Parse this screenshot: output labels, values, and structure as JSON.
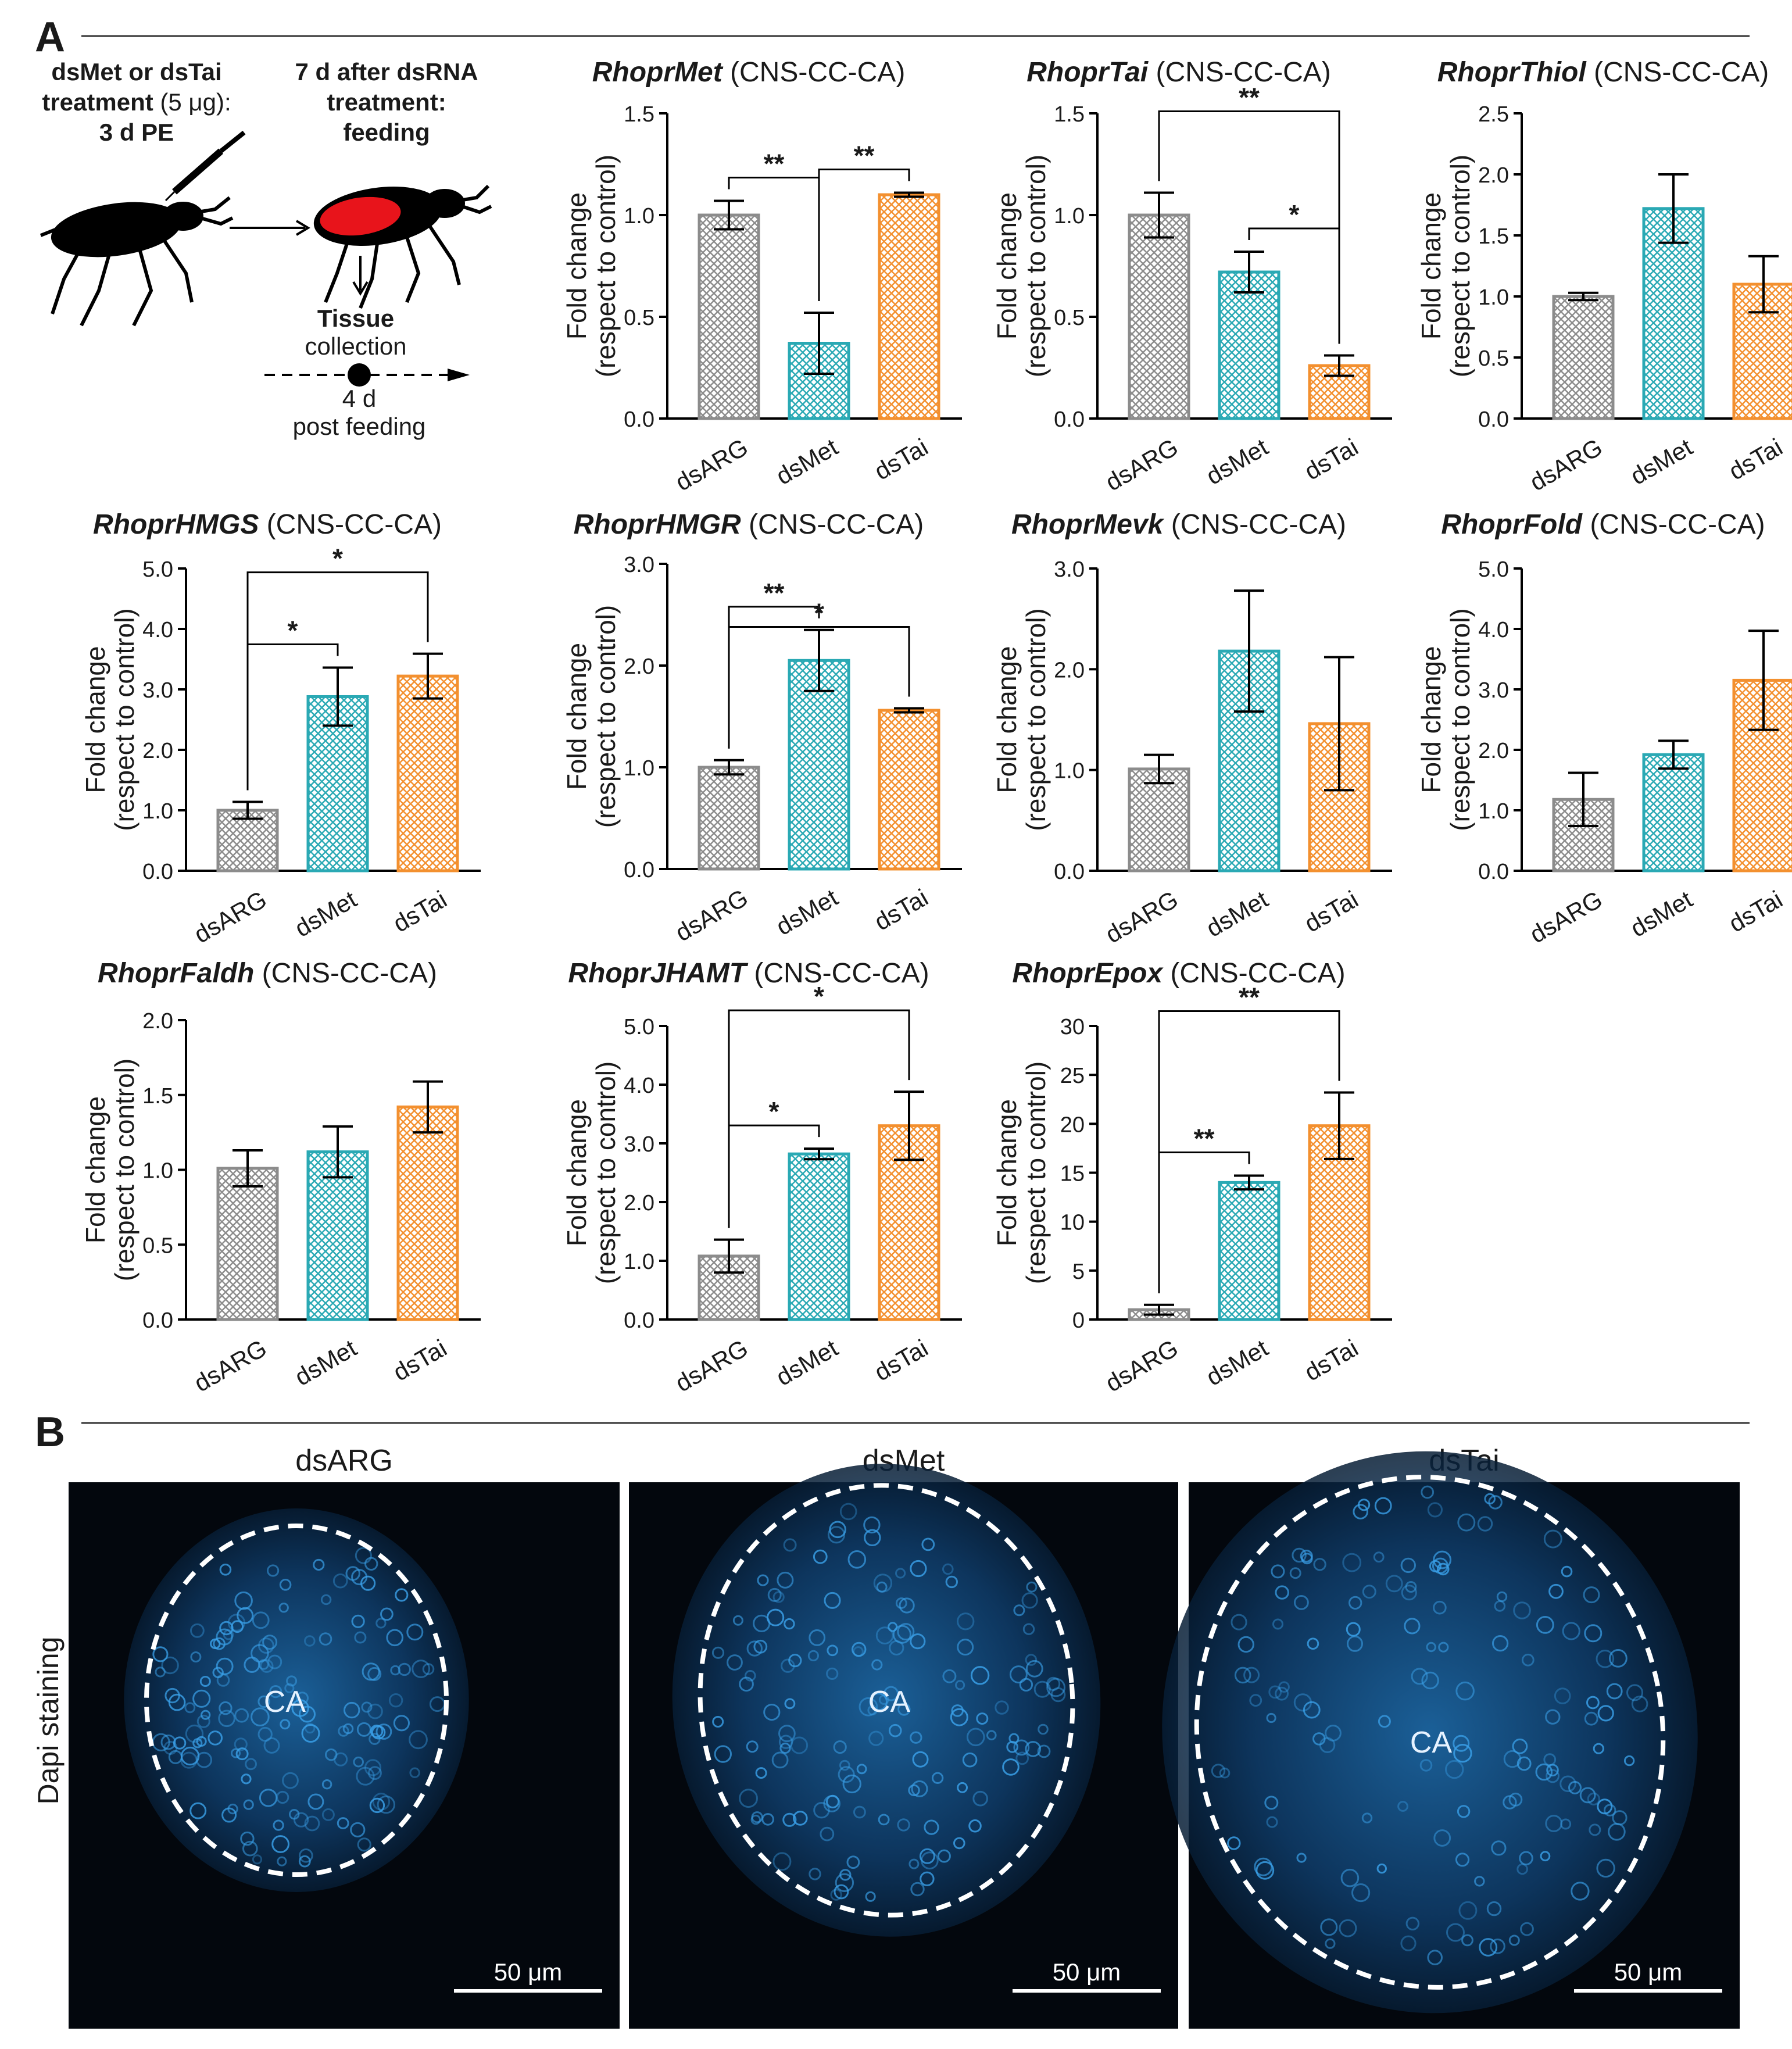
{
  "panel_a": {
    "letter": "A",
    "schematic": {
      "step1_line1": "dsMet or dsTai",
      "step1_line2a": "treatment",
      "step1_line2b": " (5 μg):",
      "step1_line3": "3 d PE",
      "step2_line1": "7 d after dsRNA",
      "step2_line2": "treatment:",
      "step2_line3": "feeding",
      "tissue": "Tissue",
      "collection": "collection",
      "days": "4 d",
      "post": "post feeding"
    },
    "ylabel_line1": "Fold change",
    "ylabel_line2": "(respect to control)",
    "colors": {
      "dsARG": "#8c8c8c",
      "dsMet": "#2aa9b4",
      "dsTai": "#f3902f"
    }
  },
  "chart_data": [
    {
      "type": "bar",
      "gene": "RhoprMet",
      "tissue": " (CNS-CC-CA)",
      "categories": [
        "dsARG",
        "dsMet",
        "dsTai"
      ],
      "values": [
        1.0,
        0.37,
        1.1
      ],
      "errors": [
        0.07,
        0.15,
        0.01
      ],
      "ylim": [
        0,
        1.5
      ],
      "yticks": [
        "0.0",
        "0.5",
        "1.0",
        "1.5"
      ],
      "ylabel": "Fold change (respect to control)",
      "significance": [
        {
          "from": 0,
          "to": 1,
          "label": "**"
        },
        {
          "from": 1,
          "to": 2,
          "label": "**"
        }
      ]
    },
    {
      "type": "bar",
      "gene": "RhoprTai",
      "tissue": " (CNS-CC-CA)",
      "categories": [
        "dsARG",
        "dsMet",
        "dsTai"
      ],
      "values": [
        1.0,
        0.72,
        0.26
      ],
      "errors": [
        0.11,
        0.1,
        0.05
      ],
      "ylim": [
        0,
        1.5
      ],
      "yticks": [
        "0.0",
        "0.5",
        "1.0",
        "1.5"
      ],
      "ylabel": "Fold change (respect to control)",
      "significance": [
        {
          "from": 0,
          "to": 2,
          "label": "**"
        },
        {
          "from": 1,
          "to": 2,
          "label": "*"
        }
      ]
    },
    {
      "type": "bar",
      "gene": "RhoprThiol",
      "tissue": " (CNS-CC-CA)",
      "categories": [
        "dsARG",
        "dsMet",
        "dsTai"
      ],
      "values": [
        1.0,
        1.72,
        1.1
      ],
      "errors": [
        0.03,
        0.28,
        0.23
      ],
      "ylim": [
        0,
        2.5
      ],
      "yticks": [
        "0.0",
        "0.5",
        "1.0",
        "1.5",
        "2.0",
        "2.5"
      ],
      "ylabel": "Fold change (respect to control)",
      "significance": []
    },
    {
      "type": "bar",
      "gene": "RhoprHMGS",
      "tissue": " (CNS-CC-CA)",
      "categories": [
        "dsARG",
        "dsMet",
        "dsTai"
      ],
      "values": [
        1.0,
        2.88,
        3.22
      ],
      "errors": [
        0.14,
        0.48,
        0.37
      ],
      "ylim": [
        0,
        5
      ],
      "yticks": [
        "0.0",
        "1.0",
        "2.0",
        "3.0",
        "4.0",
        "5.0"
      ],
      "ylabel": "Fold change (respect to control)",
      "significance": [
        {
          "from": 0,
          "to": 1,
          "label": "*"
        },
        {
          "from": 0,
          "to": 2,
          "label": "*"
        }
      ]
    },
    {
      "type": "bar",
      "gene": "RhoprHMGR",
      "tissue": " (CNS-CC-CA)",
      "categories": [
        "dsARG",
        "dsMet",
        "dsTai"
      ],
      "values": [
        1.0,
        2.05,
        1.56
      ],
      "errors": [
        0.07,
        0.3,
        0.02
      ],
      "ylim": [
        0,
        3
      ],
      "yticks": [
        "0.0",
        "1.0",
        "2.0",
        "3.0"
      ],
      "ylabel": "Fold change (respect to control)",
      "significance": [
        {
          "from": 0,
          "to": 1,
          "label": "**"
        },
        {
          "from": 0,
          "to": 2,
          "label": "*"
        }
      ]
    },
    {
      "type": "bar",
      "gene": "RhoprMevk",
      "tissue": " (CNS-CC-CA)",
      "categories": [
        "dsARG",
        "dsMet",
        "dsTai"
      ],
      "values": [
        1.01,
        2.18,
        1.46
      ],
      "errors": [
        0.14,
        0.6,
        0.66
      ],
      "ylim": [
        0,
        3
      ],
      "yticks": [
        "0.0",
        "1.0",
        "2.0",
        "3.0"
      ],
      "ylabel": "Fold change (respect to control)",
      "significance": []
    },
    {
      "type": "bar",
      "gene": "RhoprFold",
      "tissue": " (CNS-CC-CA)",
      "categories": [
        "dsARG",
        "dsMet",
        "dsTai"
      ],
      "values": [
        1.18,
        1.92,
        3.15
      ],
      "errors": [
        0.44,
        0.23,
        0.82
      ],
      "ylim": [
        0,
        5
      ],
      "yticks": [
        "0.0",
        "1.0",
        "2.0",
        "3.0",
        "4.0",
        "5.0"
      ],
      "ylabel": "Fold change (respect to control)",
      "significance": []
    },
    {
      "type": "bar",
      "gene": "RhoprFaldh",
      "tissue": " (CNS-CC-CA)",
      "categories": [
        "dsARG",
        "dsMet",
        "dsTai"
      ],
      "values": [
        1.01,
        1.12,
        1.42
      ],
      "errors": [
        0.12,
        0.17,
        0.17
      ],
      "ylim": [
        0,
        2
      ],
      "yticks": [
        "0.0",
        "0.5",
        "1.0",
        "1.5",
        "2.0"
      ],
      "ylabel": "Fold change (respect to control)",
      "significance": []
    },
    {
      "type": "bar",
      "gene": "RhoprJHAMT",
      "tissue": " (CNS-CC-CA)",
      "categories": [
        "dsARG",
        "dsMet",
        "dsTai"
      ],
      "values": [
        1.08,
        2.82,
        3.3
      ],
      "errors": [
        0.28,
        0.09,
        0.58
      ],
      "ylim": [
        0,
        5
      ],
      "yticks": [
        "0.0",
        "1.0",
        "2.0",
        "3.0",
        "4.0",
        "5.0"
      ],
      "ylabel": "Fold change (respect to control)",
      "significance": [
        {
          "from": 0,
          "to": 1,
          "label": "*"
        },
        {
          "from": 0,
          "to": 2,
          "label": "*"
        }
      ]
    },
    {
      "type": "bar",
      "gene": "RhoprEpox",
      "tissue": " (CNS-CC-CA)",
      "categories": [
        "dsARG",
        "dsMet",
        "dsTai"
      ],
      "values": [
        1.0,
        14.0,
        19.8
      ],
      "errors": [
        0.5,
        0.7,
        3.4
      ],
      "ylim": [
        0,
        30
      ],
      "yticks": [
        "0",
        "5",
        "10",
        "15",
        "20",
        "25",
        "30"
      ],
      "ylabel": "Fold change (respect to control)",
      "significance": [
        {
          "from": 0,
          "to": 1,
          "label": "**"
        },
        {
          "from": 0,
          "to": 2,
          "label": "**"
        }
      ]
    }
  ],
  "panel_b": {
    "letter": "B",
    "side_label": "Dapi staining",
    "images": [
      {
        "title": "dsARG",
        "region": "CA",
        "scale": "50 μm"
      },
      {
        "title": "dsMet",
        "region": "CA",
        "scale": "50 μm"
      },
      {
        "title": "dsTai",
        "region": "CA",
        "scale": "50 μm"
      }
    ]
  }
}
